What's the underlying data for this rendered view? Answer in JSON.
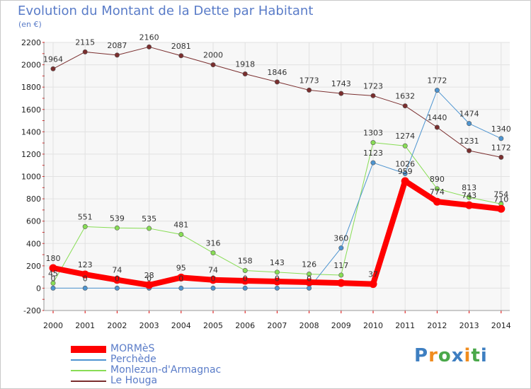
{
  "chart_data": {
    "type": "line",
    "title": "Evolution du Montant de la Dette par Habitant",
    "unit_label": "(en €)",
    "x": [
      "2000",
      "2001",
      "2002",
      "2003",
      "2004",
      "2005",
      "2006",
      "2007",
      "2008",
      "2009",
      "2010",
      "2011",
      "2012",
      "2013",
      "2014"
    ],
    "ylim": [
      -200,
      2200
    ],
    "yticks": [
      -200,
      0,
      200,
      400,
      600,
      800,
      1000,
      1200,
      1400,
      1600,
      1800,
      2000,
      2200
    ],
    "grid": true,
    "legend_position": "bottom-left",
    "series": [
      {
        "name": "MORMèS",
        "color": "#ff0000",
        "values": [
          180,
          123,
          74,
          28,
          95,
          74,
          66,
          60,
          53,
          46,
          37,
          959,
          774,
          743,
          710
        ],
        "labels": [
          "180",
          "123",
          "74",
          "28",
          "95",
          "74",
          "",
          "",
          "",
          "",
          "37",
          "959",
          "774",
          "743",
          "710"
        ],
        "linewidth": 8
      },
      {
        "name": "Perchède",
        "color": "#4d94d0",
        "values": [
          0,
          0,
          0,
          0,
          0,
          0,
          0,
          0,
          0,
          360,
          1123,
          1026,
          1772,
          1474,
          1340
        ],
        "labels": [
          "0",
          "0",
          "0",
          "0",
          "0",
          "0",
          "0",
          "0",
          "0",
          "360",
          "1123",
          "1026",
          "1772",
          "1474",
          "1340"
        ],
        "linewidth": 1
      },
      {
        "name": "Monlezun-d'Armagnac",
        "color": "#88dd55",
        "values": [
          45,
          551,
          539,
          535,
          481,
          316,
          158,
          143,
          126,
          117,
          1303,
          1274,
          890,
          813,
          754
        ],
        "labels": [
          "45",
          "551",
          "539",
          "535",
          "481",
          "316",
          "158",
          "143",
          "126",
          "117",
          "1303",
          "1274",
          "890",
          "813",
          "754"
        ],
        "linewidth": 1
      },
      {
        "name": "Le Houga",
        "color": "#7a2e2e",
        "values": [
          1964,
          2115,
          2087,
          2160,
          2081,
          2000,
          1918,
          1846,
          1773,
          1743,
          1723,
          1632,
          1440,
          1231,
          1172
        ],
        "labels": [
          "1964",
          "2115",
          "2087",
          "2160",
          "2081",
          "2000",
          "1918",
          "1846",
          "1773",
          "1743",
          "1723",
          "1632",
          "1440",
          "1231",
          "1172"
        ],
        "linewidth": 1
      }
    ]
  },
  "logo": {
    "text": "Proxiti",
    "letters": [
      "P",
      "r",
      "o",
      "x",
      "i",
      "t",
      "i"
    ],
    "colors": [
      "#3e7fc1",
      "#f08c1e",
      "#4aa84a",
      "#3e7fc1",
      "#f08c1e",
      "#4aa84a",
      "#3e7fc1"
    ]
  }
}
